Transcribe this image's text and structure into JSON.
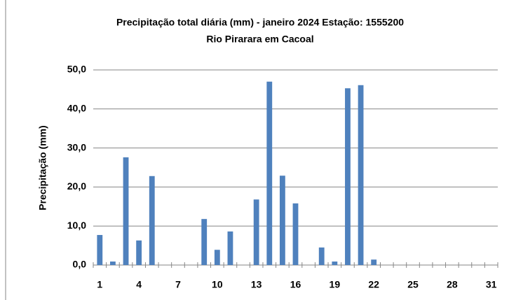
{
  "chart_data": {
    "type": "bar",
    "title": "Precipitação total diária (mm) - janeiro 2024 Estação:  1555200",
    "subtitle": "Rio Pirarara em Cacoal",
    "y_label": "Precipitação (mm)",
    "categories": [
      "1",
      null,
      null,
      "4",
      null,
      null,
      "7",
      null,
      null,
      "10",
      null,
      null,
      "13",
      null,
      null,
      "16",
      null,
      null,
      "19",
      null,
      null,
      "22",
      null,
      null,
      "25",
      null,
      null,
      "28",
      null,
      null,
      "31"
    ],
    "values": [
      7.7,
      0.9,
      27.6,
      6.3,
      22.8,
      0,
      0,
      0,
      11.8,
      3.9,
      8.6,
      0,
      16.8,
      47.0,
      22.9,
      15.8,
      0,
      4.5,
      0.9,
      45.3,
      46.1,
      1.4,
      0,
      0,
      0,
      0,
      0,
      0,
      0,
      0,
      0
    ],
    "color": "#4f81bd",
    "ylim": [
      0,
      50
    ],
    "yticks": [
      {
        "value": 0,
        "label": "0,0"
      },
      {
        "value": 10,
        "label": "10,0"
      },
      {
        "value": 20,
        "label": "20,0"
      },
      {
        "value": 30,
        "label": "30,0"
      },
      {
        "value": 40,
        "label": "40,0"
      },
      {
        "value": 50,
        "label": "50,0"
      }
    ],
    "grid": true
  }
}
